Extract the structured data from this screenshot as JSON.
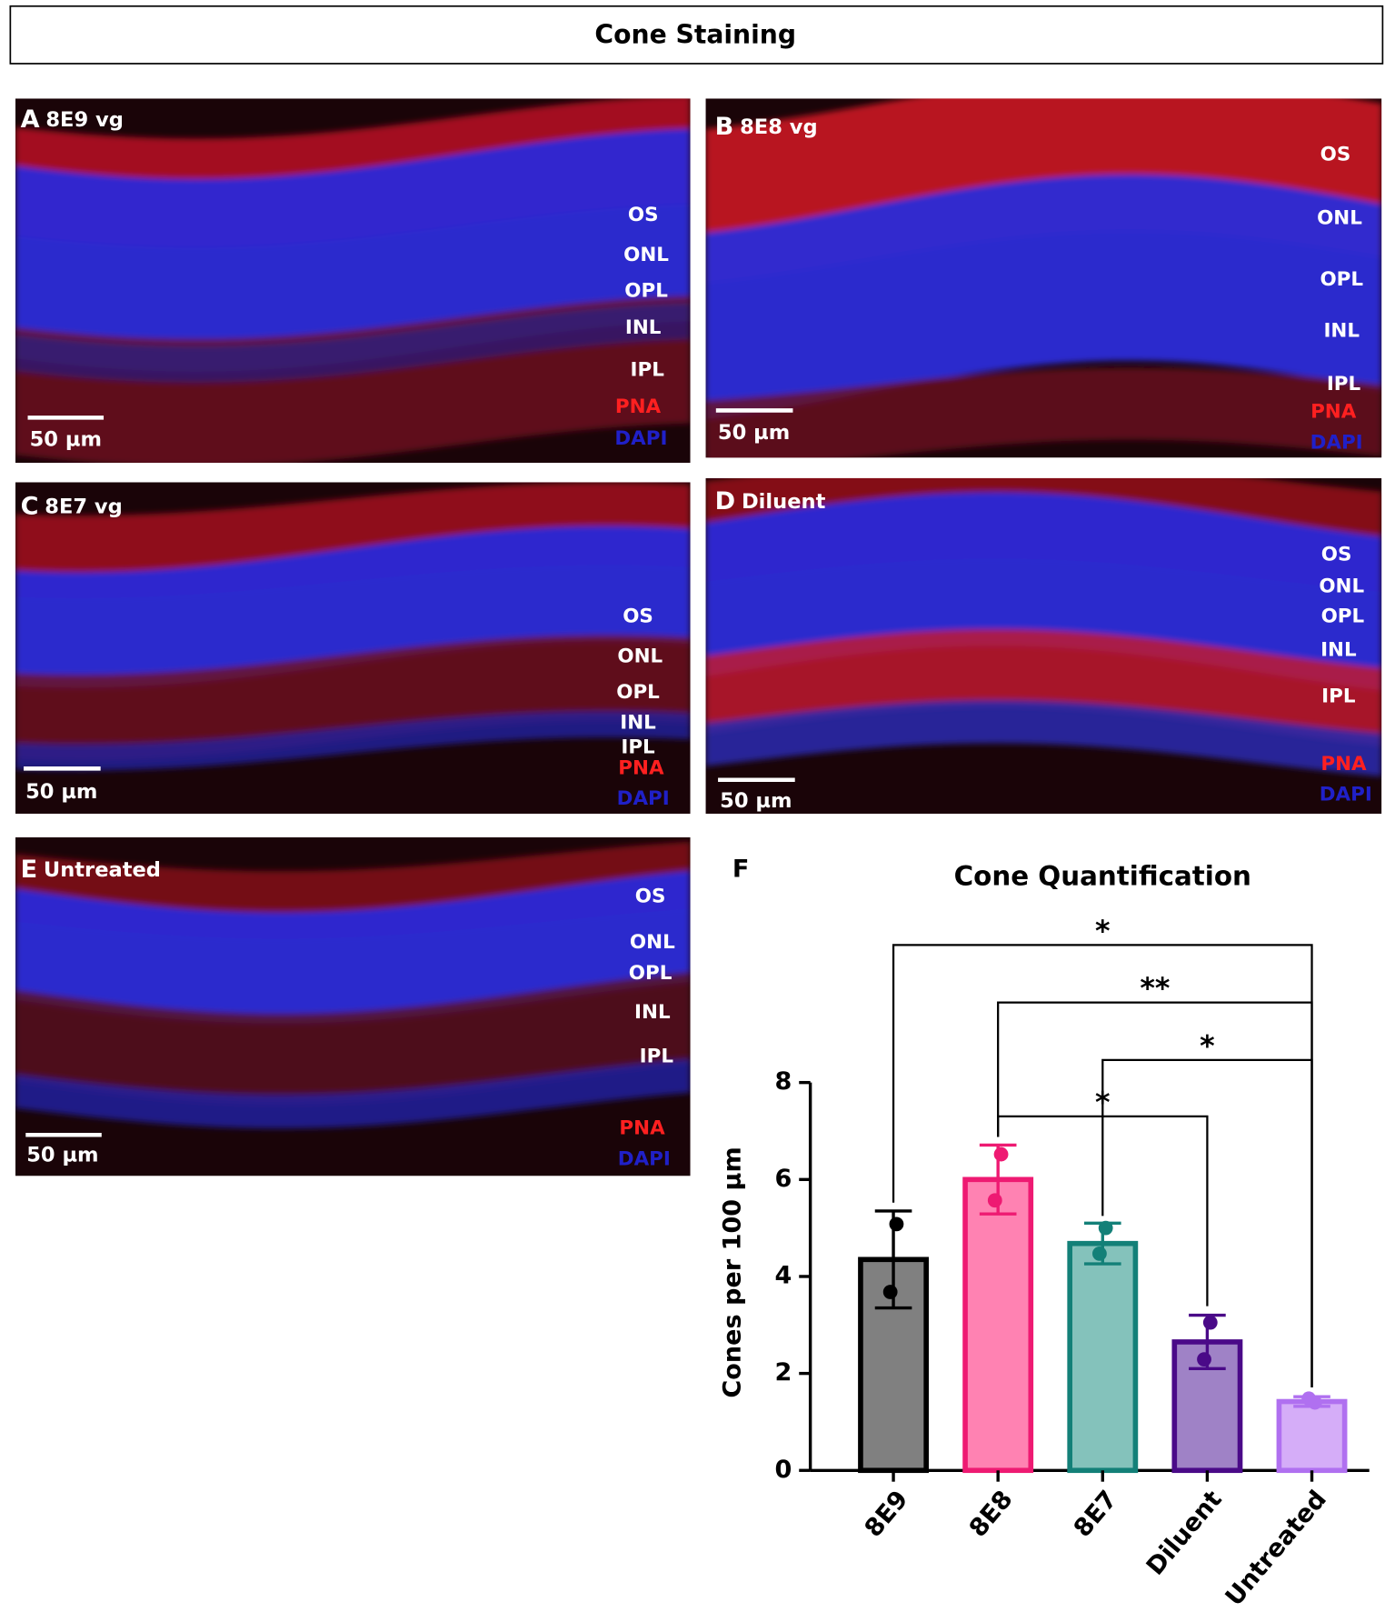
{
  "header": {
    "title": "Cone Staining"
  },
  "panels": [
    {
      "letter": "A",
      "label": "8E9 vg",
      "layers": [
        "OS",
        "ONL",
        "OPL",
        "INL",
        "IPL"
      ],
      "stains": [
        "PNA",
        "DAPI"
      ],
      "scale_bar": "50 µm"
    },
    {
      "letter": "B",
      "label": "8E8 vg",
      "layers": [
        "OS",
        "ONL",
        "OPL",
        "INL",
        "IPL"
      ],
      "stains": [
        "PNA",
        "DAPI"
      ],
      "scale_bar": "50 µm"
    },
    {
      "letter": "C",
      "label": "8E7 vg",
      "layers": [
        "OS",
        "ONL",
        "OPL",
        "INL",
        "IPL"
      ],
      "stains": [
        "PNA",
        "DAPI"
      ],
      "scale_bar": "50 µm"
    },
    {
      "letter": "D",
      "label": "Diluent",
      "layers": [
        "OS",
        "ONL",
        "OPL",
        "INL",
        "IPL"
      ],
      "stains": [
        "PNA",
        "DAPI"
      ],
      "scale_bar": "50 µm"
    },
    {
      "letter": "E",
      "label": "Untreated",
      "layers": [
        "OS",
        "ONL",
        "OPL",
        "INL",
        "IPL"
      ],
      "stains": [
        "PNA",
        "DAPI"
      ],
      "scale_bar": "50 µm"
    }
  ],
  "chart_data": {
    "type": "bar",
    "panel_letter": "F",
    "title": "Cone Quantification",
    "y_label": "Cones per 100 µm",
    "categories": [
      "8E9",
      "8E8",
      "8E7",
      "Diluent",
      "Untreated"
    ],
    "values": [
      4.35,
      6.0,
      4.68,
      2.65,
      1.42
    ],
    "errors": [
      1.0,
      0.71,
      0.42,
      0.55,
      0.1
    ],
    "points": [
      [
        5.08,
        3.68
      ],
      [
        6.52,
        5.57
      ],
      [
        5.0,
        4.47
      ],
      [
        3.05,
        2.29
      ],
      [
        1.4,
        1.48
      ]
    ],
    "colors": [
      "#808080",
      "#ff82b2",
      "#84c2bb",
      "#9f82c6",
      "#d5adf8"
    ],
    "edge_colors": [
      "#000000",
      "#ee1a72",
      "#138078",
      "#4a0a88",
      "#b070f0"
    ],
    "ylim": [
      0,
      8
    ],
    "yticks": [
      0,
      2,
      4,
      6,
      8
    ],
    "significance": [
      "*",
      "**",
      "*",
      "*"
    ]
  }
}
